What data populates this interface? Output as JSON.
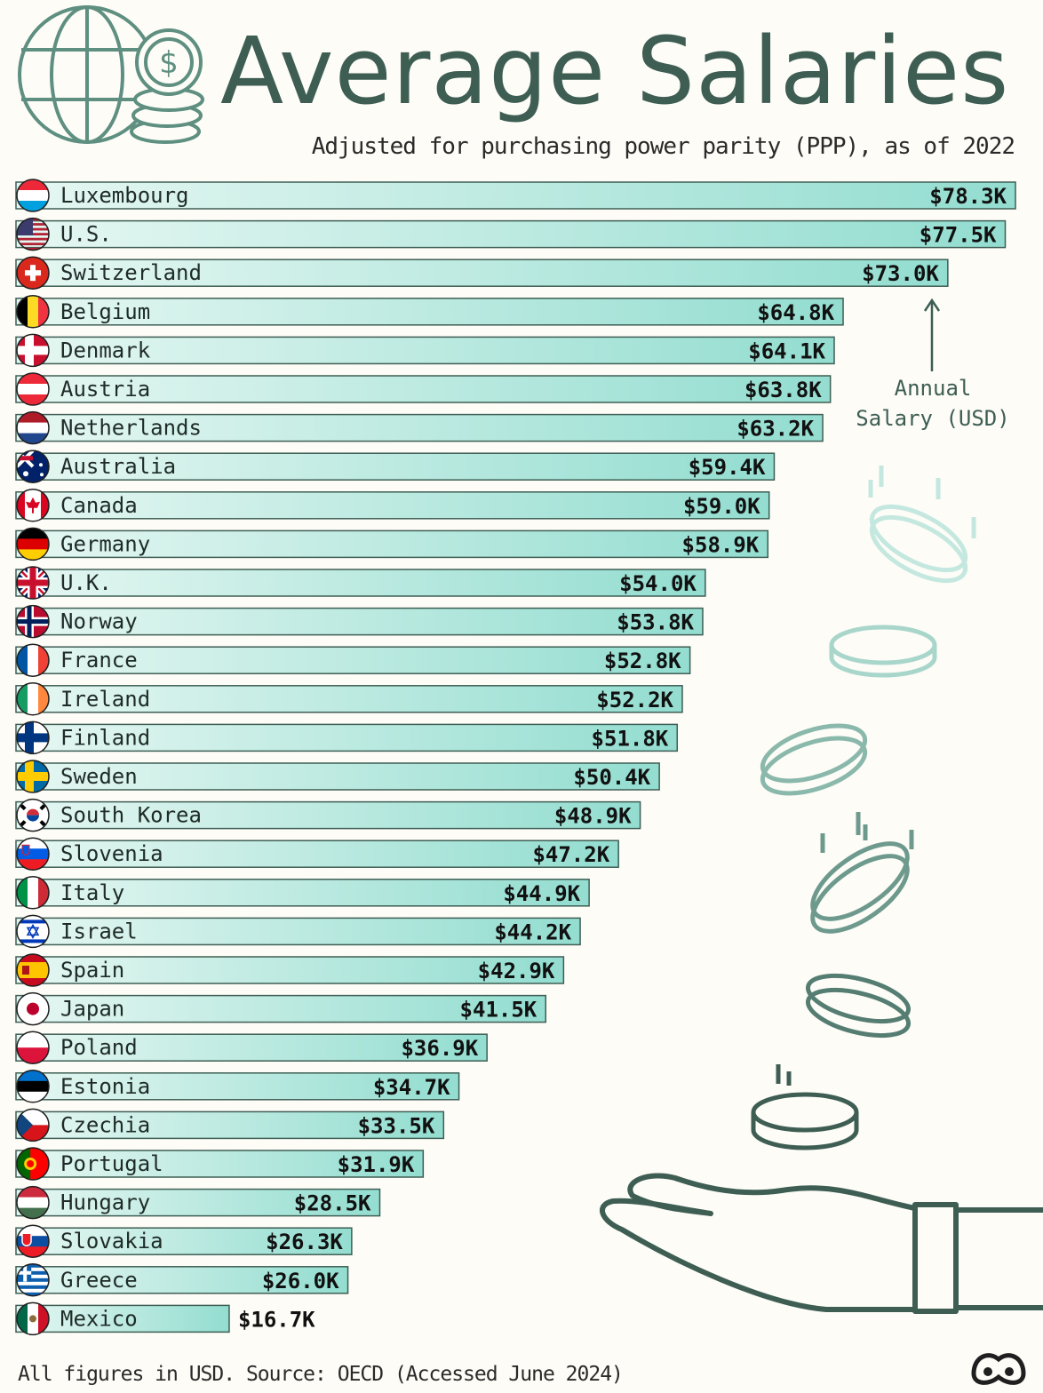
{
  "header": {
    "title": "Average Salaries",
    "subtitle": "Adjusted for purchasing power parity (PPP), as of 2022",
    "icon": "globe-coins-icon"
  },
  "annotation": {
    "line1": "Annual",
    "line2": "Salary (USD)"
  },
  "footer": {
    "source": "All figures in USD. Source: OECD (Accessed June 2024)",
    "logo": "visual-capitalist-logo-icon"
  },
  "colors": {
    "bar_light": "#e6f7f2",
    "bar_dark": "#93ddd0",
    "bar_border": "#3e5e54",
    "accent": "#3e5e54"
  },
  "chart_data": {
    "type": "bar",
    "orientation": "horizontal",
    "title": "Average Salaries",
    "subtitle": "Adjusted for purchasing power parity (PPP), as of 2022",
    "unit": "USD",
    "categories": [
      "Luxembourg",
      "U.S.",
      "Switzerland",
      "Belgium",
      "Denmark",
      "Austria",
      "Netherlands",
      "Australia",
      "Canada",
      "Germany",
      "U.K.",
      "Norway",
      "France",
      "Ireland",
      "Finland",
      "Sweden",
      "South Korea",
      "Slovenia",
      "Italy",
      "Israel",
      "Spain",
      "Japan",
      "Poland",
      "Estonia",
      "Czechia",
      "Portugal",
      "Hungary",
      "Slovakia",
      "Greece",
      "Mexico"
    ],
    "values": [
      78.3,
      77.5,
      73.0,
      64.8,
      64.1,
      63.8,
      63.2,
      59.4,
      59.0,
      58.9,
      54.0,
      53.8,
      52.8,
      52.2,
      51.8,
      50.4,
      48.9,
      47.2,
      44.9,
      44.2,
      42.9,
      41.5,
      36.9,
      34.7,
      33.5,
      31.9,
      28.5,
      26.3,
      26.0,
      16.7
    ],
    "value_labels": [
      "$78.3K",
      "$77.5K",
      "$73.0K",
      "$64.8K",
      "$64.1K",
      "$63.8K",
      "$63.2K",
      "$59.4K",
      "$59.0K",
      "$58.9K",
      "$54.0K",
      "$53.8K",
      "$52.8K",
      "$52.2K",
      "$51.8K",
      "$50.4K",
      "$48.9K",
      "$47.2K",
      "$44.9K",
      "$44.2K",
      "$42.9K",
      "$41.5K",
      "$36.9K",
      "$34.7K",
      "$33.5K",
      "$31.9K",
      "$28.5K",
      "$26.3K",
      "$26.0K",
      "$16.7K"
    ],
    "flags": [
      "luxembourg-flag-icon",
      "us-flag-icon",
      "switzerland-flag-icon",
      "belgium-flag-icon",
      "denmark-flag-icon",
      "austria-flag-icon",
      "netherlands-flag-icon",
      "australia-flag-icon",
      "canada-flag-icon",
      "germany-flag-icon",
      "uk-flag-icon",
      "norway-flag-icon",
      "france-flag-icon",
      "ireland-flag-icon",
      "finland-flag-icon",
      "sweden-flag-icon",
      "south-korea-flag-icon",
      "slovenia-flag-icon",
      "italy-flag-icon",
      "israel-flag-icon",
      "spain-flag-icon",
      "japan-flag-icon",
      "poland-flag-icon",
      "estonia-flag-icon",
      "czechia-flag-icon",
      "portugal-flag-icon",
      "hungary-flag-icon",
      "slovakia-flag-icon",
      "greece-flag-icon",
      "mexico-flag-icon"
    ],
    "xlim": [
      0,
      78.3
    ],
    "grid": false,
    "legend": "none"
  }
}
